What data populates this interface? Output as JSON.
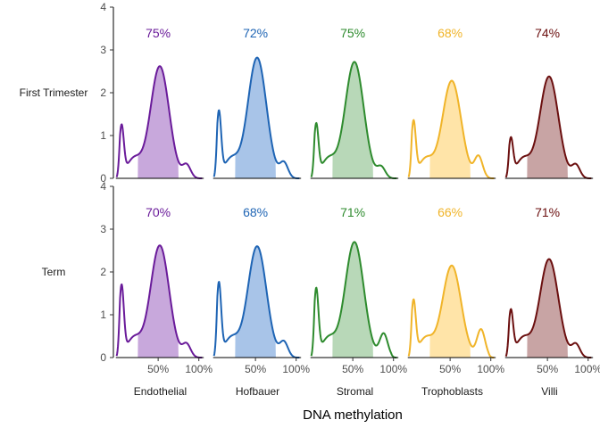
{
  "chart_data": {
    "type": "area",
    "xlabel": "DNA methylation",
    "ylabel": "",
    "x_ticks": [
      "50%",
      "100%"
    ],
    "x_tick_values": [
      0.5,
      1.0
    ],
    "xlim": [
      -0.05,
      1.08
    ],
    "ylim": [
      0,
      4
    ],
    "y_ticks": [
      "0",
      "1",
      "2",
      "3",
      "4"
    ],
    "y_tick_values": [
      0,
      1,
      2,
      3,
      4
    ],
    "grid": false,
    "legend": "none",
    "shaded_interval": [
      0.25,
      0.75
    ],
    "rows": [
      "First Trimester",
      "Term"
    ],
    "columns": [
      "Endothelial",
      "Hofbauer",
      "Stromal",
      "Trophoblasts",
      "Villi"
    ],
    "colors": {
      "Endothelial": "#6a1b9a",
      "Hofbauer": "#1e64b4",
      "Stromal": "#2e8b2e",
      "Trophoblasts": "#f0b429",
      "Villi": "#6b0f0f"
    },
    "fill_colors": {
      "Endothelial": "#c8a8dc",
      "Hofbauer": "#a8c4e8",
      "Stromal": "#b8d8b8",
      "Trophoblasts": "#ffe4a8",
      "Villi": "#c8a4a4"
    },
    "panels": [
      {
        "row": "First Trimester",
        "column": "Endothelial",
        "label": "75%",
        "peaks": {
          "low_x": 0.05,
          "low_h": 1.15,
          "main_x": 0.52,
          "main_h": 2.62,
          "tail_x": 0.85,
          "tail_h": 0.3
        }
      },
      {
        "row": "First Trimester",
        "column": "Hofbauer",
        "label": "72%",
        "peaks": {
          "low_x": 0.05,
          "low_h": 1.48,
          "main_x": 0.52,
          "main_h": 2.82,
          "tail_x": 0.85,
          "tail_h": 0.35
        }
      },
      {
        "row": "First Trimester",
        "column": "Stromal",
        "label": "75%",
        "peaks": {
          "low_x": 0.05,
          "low_h": 1.18,
          "main_x": 0.52,
          "main_h": 2.72,
          "tail_x": 0.85,
          "tail_h": 0.25
        }
      },
      {
        "row": "First Trimester",
        "column": "Trophoblasts",
        "label": "68%",
        "peaks": {
          "low_x": 0.05,
          "low_h": 1.25,
          "main_x": 0.52,
          "main_h": 2.28,
          "tail_x": 0.85,
          "tail_h": 0.5
        }
      },
      {
        "row": "First Trimester",
        "column": "Villi",
        "label": "74%",
        "peaks": {
          "low_x": 0.05,
          "low_h": 0.85,
          "main_x": 0.52,
          "main_h": 2.38,
          "tail_x": 0.85,
          "tail_h": 0.3
        }
      },
      {
        "row": "Term",
        "column": "Endothelial",
        "label": "70%",
        "peaks": {
          "low_x": 0.05,
          "low_h": 1.6,
          "main_x": 0.52,
          "main_h": 2.62,
          "tail_x": 0.85,
          "tail_h": 0.3
        }
      },
      {
        "row": "Term",
        "column": "Hofbauer",
        "label": "68%",
        "peaks": {
          "low_x": 0.05,
          "low_h": 1.66,
          "main_x": 0.52,
          "main_h": 2.6,
          "tail_x": 0.85,
          "tail_h": 0.35
        }
      },
      {
        "row": "Term",
        "column": "Stromal",
        "label": "71%",
        "peaks": {
          "low_x": 0.05,
          "low_h": 1.52,
          "main_x": 0.52,
          "main_h": 2.7,
          "tail_x": 0.88,
          "tail_h": 0.55
        }
      },
      {
        "row": "Term",
        "column": "Trophoblasts",
        "label": "66%",
        "peaks": {
          "low_x": 0.05,
          "low_h": 1.25,
          "main_x": 0.52,
          "main_h": 2.15,
          "tail_x": 0.88,
          "tail_h": 0.65
        }
      },
      {
        "row": "Term",
        "column": "Villi",
        "label": "71%",
        "peaks": {
          "low_x": 0.05,
          "low_h": 1.02,
          "main_x": 0.52,
          "main_h": 2.3,
          "tail_x": 0.85,
          "tail_h": 0.3
        }
      }
    ]
  }
}
